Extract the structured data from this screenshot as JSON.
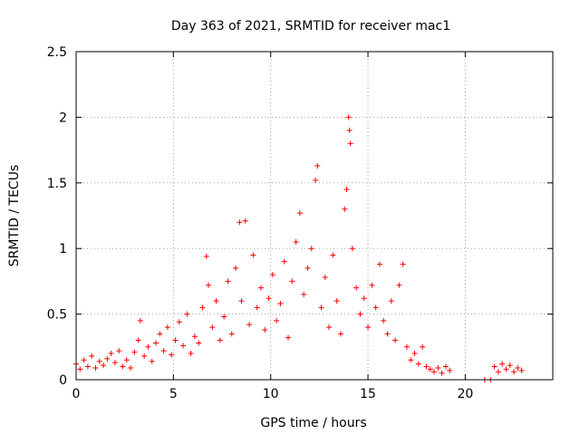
{
  "chart_data": {
    "type": "scatter",
    "title": "Day 363 of 2021, SRMTID for receiver mac1",
    "xlabel": "GPS time / hours",
    "ylabel": "SRMTID / TECUs",
    "xlim": [
      0,
      24.5
    ],
    "ylim": [
      0,
      2.5
    ],
    "xticks": [
      0,
      5,
      10,
      15,
      20
    ],
    "xtick_labels": [
      "0",
      "5",
      "10",
      "15",
      "20"
    ],
    "yticks": [
      0,
      0.5,
      1,
      1.5,
      2,
      2.5
    ],
    "ytick_labels": [
      "0",
      "0.5",
      "1",
      "1.5",
      "2",
      "2.5"
    ],
    "grid": true,
    "marker": "+",
    "color": "#ff0000",
    "series": [
      {
        "name": "SRMTID",
        "points": [
          [
            0.0,
            0.12
          ],
          [
            0.2,
            0.08
          ],
          [
            0.4,
            0.15
          ],
          [
            0.6,
            0.1
          ],
          [
            0.8,
            0.18
          ],
          [
            1.0,
            0.09
          ],
          [
            1.2,
            0.14
          ],
          [
            1.4,
            0.11
          ],
          [
            1.6,
            0.16
          ],
          [
            1.8,
            0.2
          ],
          [
            2.0,
            0.13
          ],
          [
            2.2,
            0.22
          ],
          [
            2.4,
            0.1
          ],
          [
            2.6,
            0.15
          ],
          [
            2.8,
            0.09
          ],
          [
            3.0,
            0.21
          ],
          [
            3.2,
            0.3
          ],
          [
            3.3,
            0.45
          ],
          [
            3.5,
            0.18
          ],
          [
            3.7,
            0.25
          ],
          [
            3.9,
            0.14
          ],
          [
            4.1,
            0.28
          ],
          [
            4.3,
            0.35
          ],
          [
            4.5,
            0.22
          ],
          [
            4.7,
            0.4
          ],
          [
            4.9,
            0.19
          ],
          [
            5.1,
            0.3
          ],
          [
            5.3,
            0.44
          ],
          [
            5.5,
            0.26
          ],
          [
            5.7,
            0.5
          ],
          [
            5.9,
            0.2
          ],
          [
            6.1,
            0.33
          ],
          [
            6.3,
            0.28
          ],
          [
            6.5,
            0.55
          ],
          [
            6.7,
            0.94
          ],
          [
            6.8,
            0.72
          ],
          [
            7.0,
            0.4
          ],
          [
            7.2,
            0.6
          ],
          [
            7.4,
            0.3
          ],
          [
            7.6,
            0.48
          ],
          [
            7.8,
            0.75
          ],
          [
            8.0,
            0.35
          ],
          [
            8.2,
            0.85
          ],
          [
            8.4,
            1.2
          ],
          [
            8.5,
            0.6
          ],
          [
            8.7,
            1.21
          ],
          [
            8.9,
            0.42
          ],
          [
            9.1,
            0.95
          ],
          [
            9.3,
            0.55
          ],
          [
            9.5,
            0.7
          ],
          [
            9.7,
            0.38
          ],
          [
            9.9,
            0.62
          ],
          [
            10.1,
            0.8
          ],
          [
            10.3,
            0.45
          ],
          [
            10.5,
            0.58
          ],
          [
            10.7,
            0.9
          ],
          [
            10.9,
            0.32
          ],
          [
            11.1,
            0.75
          ],
          [
            11.3,
            1.05
          ],
          [
            11.5,
            1.27
          ],
          [
            11.7,
            0.65
          ],
          [
            11.9,
            0.85
          ],
          [
            12.1,
            1.0
          ],
          [
            12.3,
            1.52
          ],
          [
            12.4,
            1.63
          ],
          [
            12.6,
            0.55
          ],
          [
            12.8,
            0.78
          ],
          [
            13.0,
            0.4
          ],
          [
            13.2,
            0.95
          ],
          [
            13.4,
            0.6
          ],
          [
            13.6,
            0.35
          ],
          [
            13.8,
            1.3
          ],
          [
            13.9,
            1.45
          ],
          [
            14.0,
            2.0
          ],
          [
            14.05,
            1.9
          ],
          [
            14.1,
            1.8
          ],
          [
            14.2,
            1.0
          ],
          [
            14.4,
            0.7
          ],
          [
            14.6,
            0.5
          ],
          [
            14.8,
            0.62
          ],
          [
            15.0,
            0.4
          ],
          [
            15.2,
            0.72
          ],
          [
            15.4,
            0.55
          ],
          [
            15.6,
            0.88
          ],
          [
            15.8,
            0.45
          ],
          [
            16.0,
            0.35
          ],
          [
            16.2,
            0.6
          ],
          [
            16.4,
            0.3
          ],
          [
            16.6,
            0.72
          ],
          [
            16.8,
            0.88
          ],
          [
            17.0,
            0.25
          ],
          [
            17.2,
            0.15
          ],
          [
            17.4,
            0.2
          ],
          [
            17.6,
            0.12
          ],
          [
            17.8,
            0.25
          ],
          [
            18.0,
            0.1
          ],
          [
            18.2,
            0.08
          ],
          [
            18.4,
            0.06
          ],
          [
            18.6,
            0.09
          ],
          [
            18.8,
            0.05
          ],
          [
            19.0,
            0.1
          ],
          [
            19.2,
            0.07
          ],
          [
            21.0,
            0.0
          ],
          [
            21.3,
            0.0
          ],
          [
            21.5,
            0.1
          ],
          [
            21.7,
            0.06
          ],
          [
            21.9,
            0.12
          ],
          [
            22.1,
            0.08
          ],
          [
            22.3,
            0.11
          ],
          [
            22.5,
            0.06
          ],
          [
            22.7,
            0.09
          ],
          [
            22.9,
            0.07
          ]
        ]
      }
    ]
  }
}
